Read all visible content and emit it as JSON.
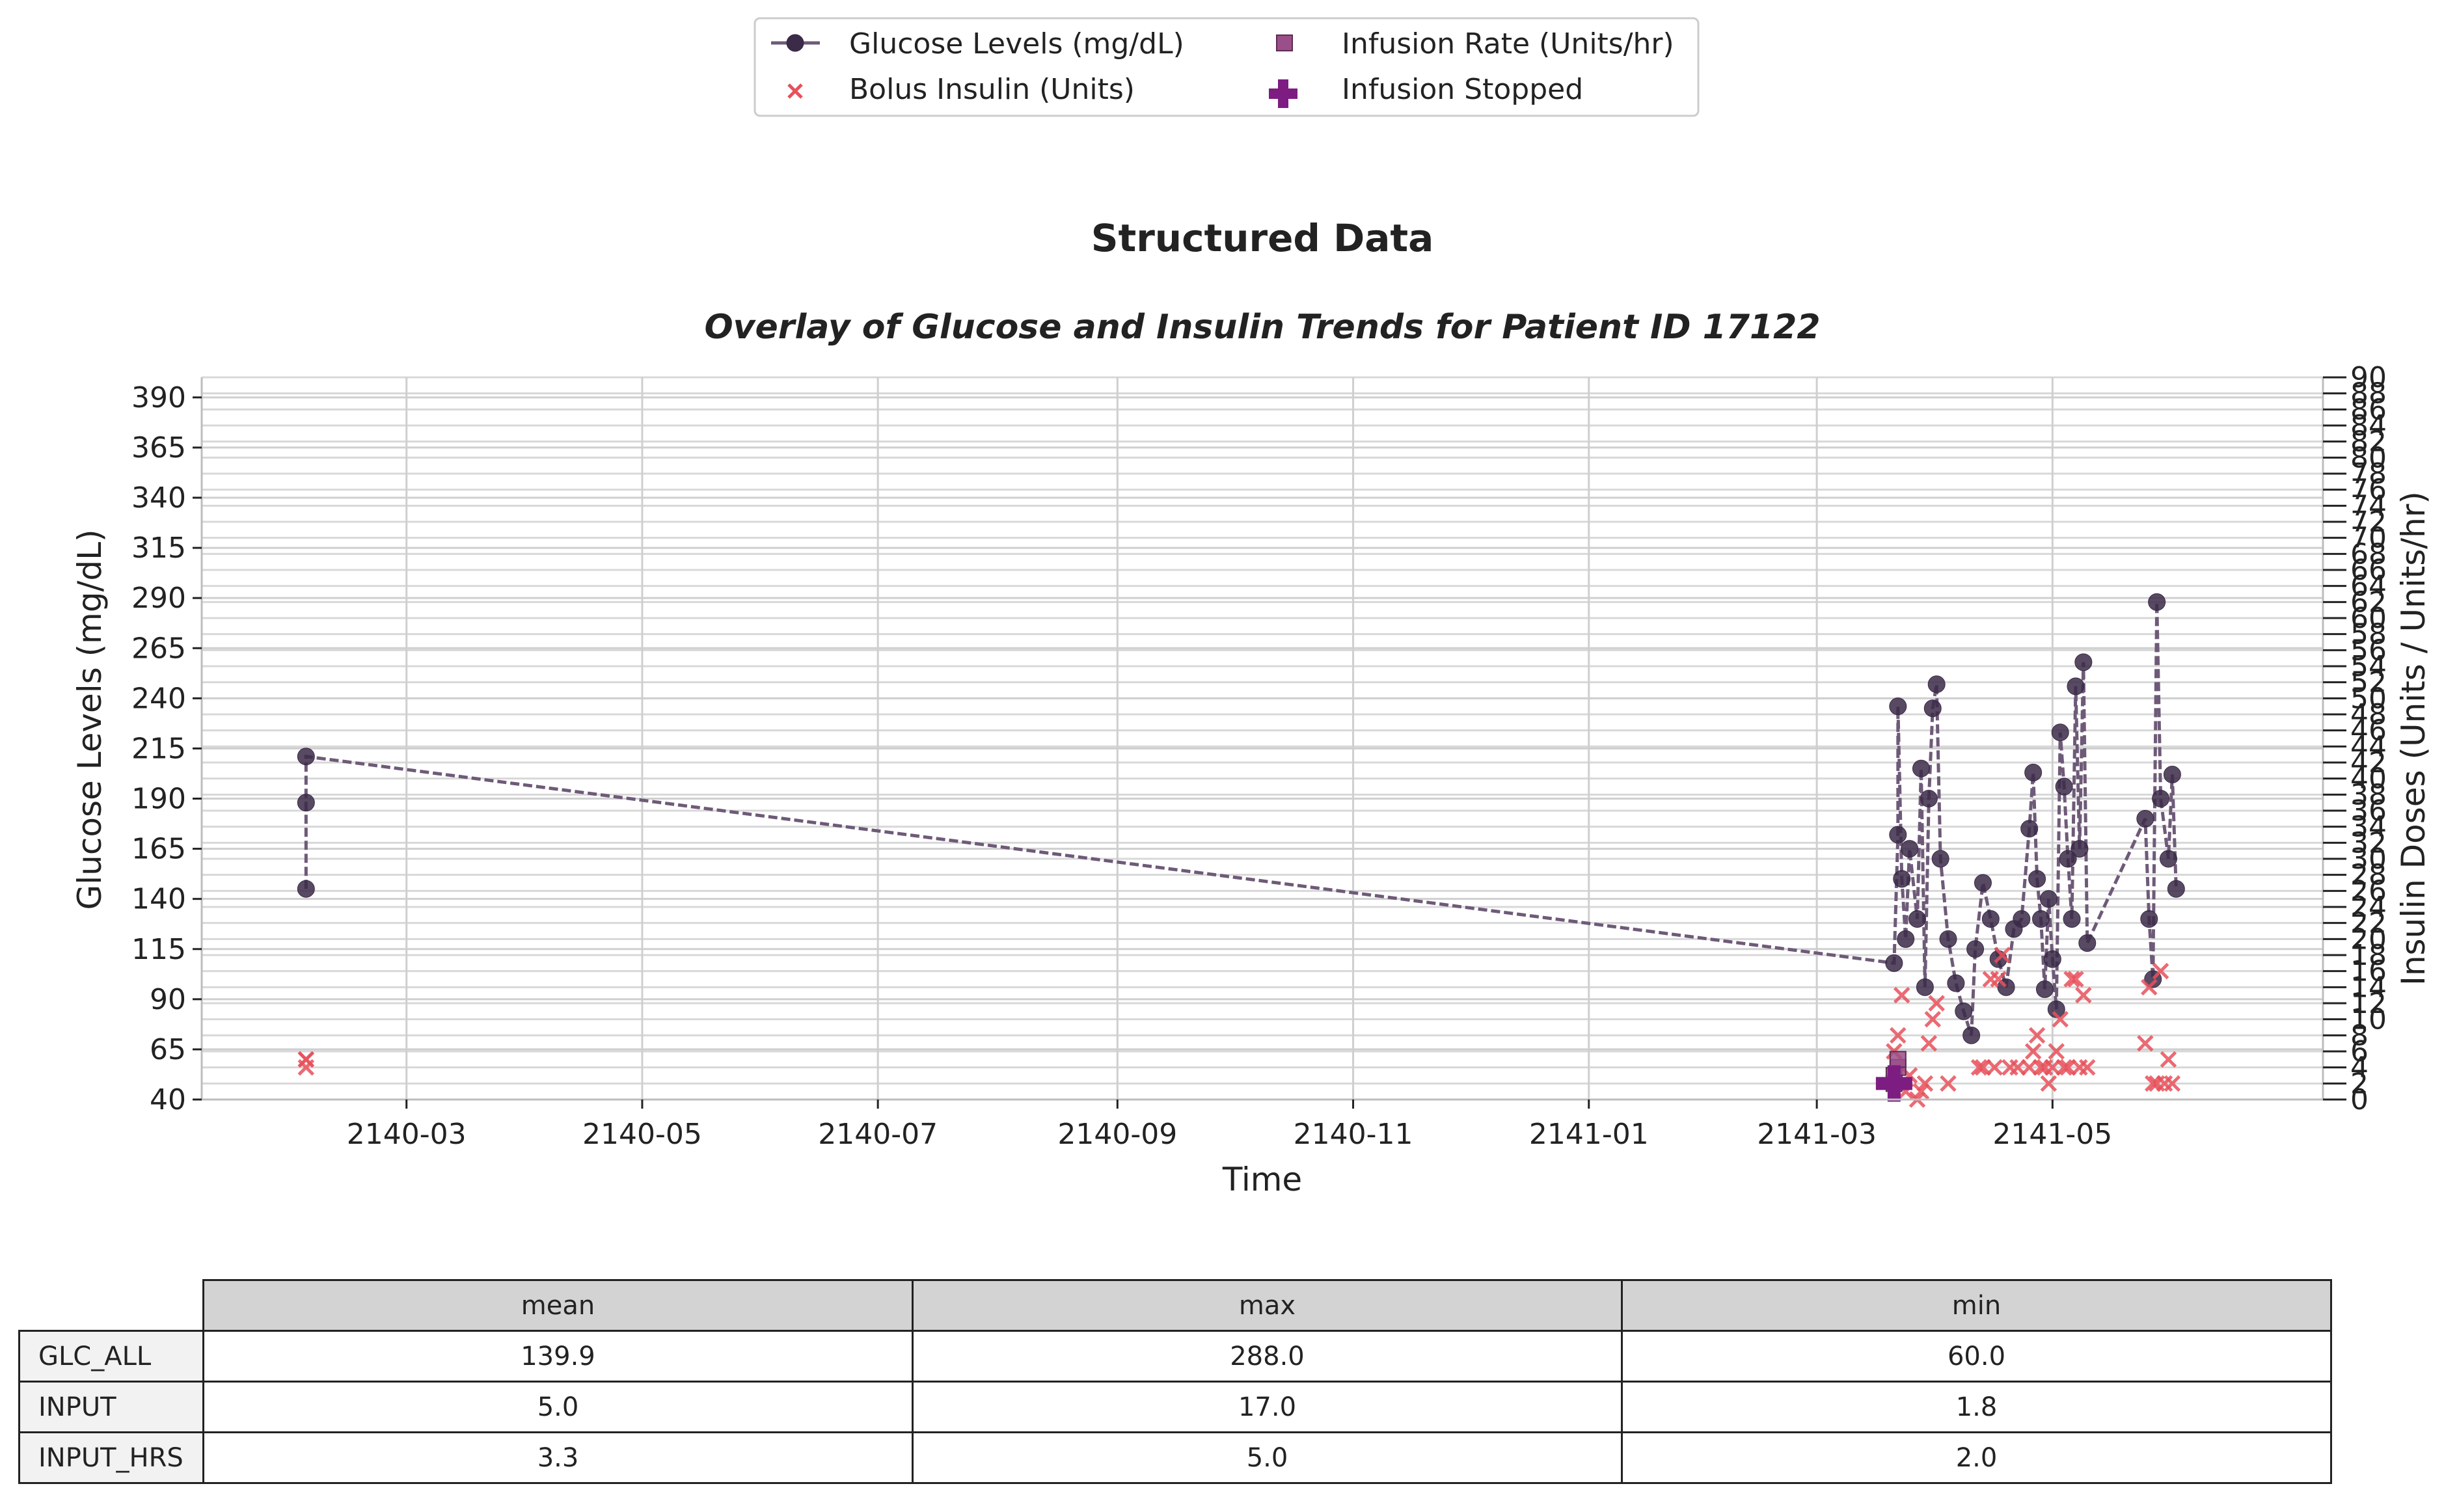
{
  "chart_data": {
    "type": "line",
    "suptitle": "Structured Data",
    "title": "Overlay of Glucose and Insulin Trends for Patient ID 17122",
    "xlabel": "Time",
    "ylabel": "Glucose Levels (mg/dL)",
    "y2label": "Insulin Doses (Units / Units/hr)",
    "xlim": [
      "2140-01-08",
      "2141-07-10"
    ],
    "ylim": [
      40,
      400
    ],
    "y2lim": [
      0,
      90
    ],
    "xticks": [
      "2140-03",
      "2140-05",
      "2140-07",
      "2140-09",
      "2140-11",
      "2141-01",
      "2141-03",
      "2141-05"
    ],
    "yticks": [
      40,
      65,
      90,
      115,
      140,
      165,
      190,
      215,
      240,
      265,
      290,
      315,
      340,
      365,
      390
    ],
    "y2ticks": [
      0,
      2,
      4,
      6,
      8,
      10,
      12,
      14,
      16,
      18,
      20,
      22,
      24,
      26,
      28,
      30,
      32,
      34,
      36,
      38,
      40,
      42,
      44,
      46,
      48,
      50,
      52,
      54,
      56,
      58,
      60,
      62,
      64,
      66,
      68,
      70,
      72,
      74,
      76,
      78,
      80,
      82,
      84,
      86,
      88,
      90
    ],
    "grid": true,
    "legend_position": "top-center",
    "colors": {
      "glucose": "#3b2a48",
      "glucose_line": "#6e5a78",
      "bolus": "#e8505b",
      "infusion_rate": "#9b4f8a",
      "infusion_stopped": "#7d1d82"
    },
    "series": [
      {
        "name": "Glucose Levels (mg/dL)",
        "marker": "circle",
        "points": [
          [
            "2140-02-04",
            145
          ],
          [
            "2140-02-04",
            188
          ],
          [
            "2140-02-04",
            211
          ],
          [
            "2141-03-21",
            108
          ],
          [
            "2141-03-22",
            172
          ],
          [
            "2141-03-22",
            236
          ],
          [
            "2141-03-23",
            150
          ],
          [
            "2141-03-24",
            120
          ],
          [
            "2141-03-25",
            165
          ],
          [
            "2141-03-27",
            130
          ],
          [
            "2141-03-28",
            205
          ],
          [
            "2141-03-29",
            96
          ],
          [
            "2141-03-30",
            190
          ],
          [
            "2141-03-31",
            235
          ],
          [
            "2141-04-01",
            247
          ],
          [
            "2141-04-02",
            160
          ],
          [
            "2141-04-04",
            120
          ],
          [
            "2141-04-06",
            98
          ],
          [
            "2141-04-08",
            84
          ],
          [
            "2141-04-10",
            72
          ],
          [
            "2141-04-11",
            115
          ],
          [
            "2141-04-13",
            148
          ],
          [
            "2141-04-15",
            130
          ],
          [
            "2141-04-17",
            110
          ],
          [
            "2141-04-19",
            96
          ],
          [
            "2141-04-21",
            125
          ],
          [
            "2141-04-23",
            130
          ],
          [
            "2141-04-25",
            175
          ],
          [
            "2141-04-26",
            203
          ],
          [
            "2141-04-27",
            150
          ],
          [
            "2141-04-28",
            130
          ],
          [
            "2141-04-29",
            95
          ],
          [
            "2141-04-30",
            140
          ],
          [
            "2141-05-01",
            110
          ],
          [
            "2141-05-02",
            85
          ],
          [
            "2141-05-03",
            223
          ],
          [
            "2141-05-04",
            196
          ],
          [
            "2141-05-05",
            160
          ],
          [
            "2141-05-06",
            130
          ],
          [
            "2141-05-07",
            246
          ],
          [
            "2141-05-08",
            165
          ],
          [
            "2141-05-09",
            258
          ],
          [
            "2141-05-10",
            118
          ],
          [
            "2141-05-25",
            180
          ],
          [
            "2141-05-26",
            130
          ],
          [
            "2141-05-27",
            100
          ],
          [
            "2141-05-28",
            288
          ],
          [
            "2141-05-29",
            190
          ],
          [
            "2141-05-31",
            160
          ],
          [
            "2141-06-01",
            202
          ],
          [
            "2141-06-02",
            145
          ]
        ]
      },
      {
        "name": "Bolus Insulin (Units)",
        "marker": "x",
        "points": [
          [
            "2140-02-04",
            4
          ],
          [
            "2140-02-04",
            5
          ],
          [
            "2140-02-04",
            5
          ],
          [
            "2141-03-21",
            6
          ],
          [
            "2141-03-22",
            8
          ],
          [
            "2141-03-23",
            13
          ],
          [
            "2141-03-24",
            1
          ],
          [
            "2141-03-25",
            3
          ],
          [
            "2141-03-27",
            0
          ],
          [
            "2141-03-28",
            1
          ],
          [
            "2141-03-29",
            2
          ],
          [
            "2141-03-30",
            7
          ],
          [
            "2141-03-31",
            10
          ],
          [
            "2141-04-01",
            12
          ],
          [
            "2141-04-04",
            2
          ],
          [
            "2141-04-12",
            4
          ],
          [
            "2141-04-13",
            4
          ],
          [
            "2141-04-15",
            15
          ],
          [
            "2141-04-16",
            4
          ],
          [
            "2141-04-17",
            15
          ],
          [
            "2141-04-18",
            18
          ],
          [
            "2141-04-20",
            4
          ],
          [
            "2141-04-22",
            4
          ],
          [
            "2141-04-25",
            4
          ],
          [
            "2141-04-26",
            6
          ],
          [
            "2141-04-27",
            8
          ],
          [
            "2141-04-28",
            4
          ],
          [
            "2141-04-29",
            4
          ],
          [
            "2141-04-30",
            2
          ],
          [
            "2141-05-01",
            4
          ],
          [
            "2141-05-02",
            6
          ],
          [
            "2141-05-03",
            10
          ],
          [
            "2141-05-04",
            4
          ],
          [
            "2141-05-05",
            4
          ],
          [
            "2141-05-06",
            15
          ],
          [
            "2141-05-07",
            15
          ],
          [
            "2141-05-08",
            4
          ],
          [
            "2141-05-09",
            13
          ],
          [
            "2141-05-10",
            4
          ],
          [
            "2141-05-25",
            7
          ],
          [
            "2141-05-26",
            14
          ],
          [
            "2141-05-27",
            2
          ],
          [
            "2141-05-28",
            2
          ],
          [
            "2141-05-29",
            16
          ],
          [
            "2141-05-30",
            2
          ],
          [
            "2141-05-31",
            5
          ],
          [
            "2141-06-01",
            2
          ]
        ]
      },
      {
        "name": "Infusion Rate (Units/hr)",
        "marker": "square",
        "points": [
          [
            "2141-03-21",
            2
          ],
          [
            "2141-03-21",
            3
          ],
          [
            "2141-03-22",
            4
          ],
          [
            "2141-03-22",
            5
          ]
        ]
      },
      {
        "name": "Infusion Stopped",
        "marker": "plus",
        "points": [
          [
            "2141-03-21",
            2
          ]
        ]
      }
    ]
  },
  "table": {
    "columns": [
      "mean",
      "max",
      "min"
    ],
    "rows": [
      {
        "label": "GLC_ALL",
        "values": [
          "139.9",
          "288.0",
          "60.0"
        ]
      },
      {
        "label": "INPUT",
        "values": [
          "5.0",
          "17.0",
          "1.8"
        ]
      },
      {
        "label": "INPUT_HRS",
        "values": [
          "3.3",
          "5.0",
          "2.0"
        ]
      }
    ]
  }
}
